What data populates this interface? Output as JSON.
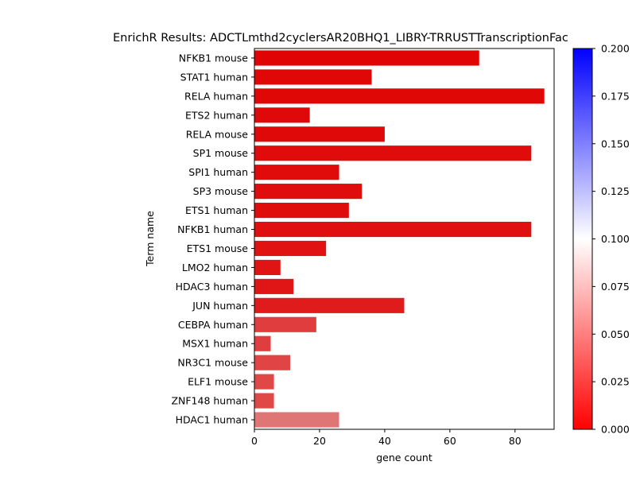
{
  "chart_data": {
    "type": "bar",
    "orientation": "horizontal",
    "title": "EnrichR Results: ADCTLmthd2cyclersAR20BHQ1_LIBRY-TRRUSTTranscriptionFac",
    "xlabel": "gene count",
    "ylabel": "Term name",
    "xlim": [
      0,
      92
    ],
    "xticks": [
      0,
      20,
      40,
      60,
      80
    ],
    "categories": [
      "NFKB1 mouse",
      "STAT1 human",
      "RELA human",
      "ETS2 human",
      "RELA mouse",
      "SP1 mouse",
      "SPI1 human",
      "SP3 mouse",
      "ETS1 human",
      "NFKB1 human",
      "ETS1 mouse",
      "LMO2 human",
      "HDAC3 human",
      "JUN human",
      "CEBPA human",
      "MSX1 human",
      "NR3C1 mouse",
      "ELF1 mouse",
      "ZNF148 human",
      "HDAC1 human"
    ],
    "values": [
      69,
      36,
      89,
      17,
      40,
      85,
      26,
      33,
      29,
      85,
      22,
      8,
      12,
      46,
      19,
      5,
      11,
      6,
      6,
      26
    ],
    "adjusted_pvalues": [
      0.002,
      0.003,
      0.003,
      0.004,
      0.004,
      0.005,
      0.005,
      0.006,
      0.006,
      0.007,
      0.008,
      0.009,
      0.01,
      0.012,
      0.028,
      0.028,
      0.03,
      0.032,
      0.032,
      0.052
    ],
    "colorbar": {
      "range": [
        0.0,
        0.2
      ],
      "ticks": [
        "0.000",
        "0.025",
        "0.050",
        "0.075",
        "0.100",
        "0.125",
        "0.150",
        "0.175",
        "0.200"
      ],
      "colormap": [
        "#ff0000",
        "#ffffff",
        "#0000ff"
      ]
    }
  }
}
